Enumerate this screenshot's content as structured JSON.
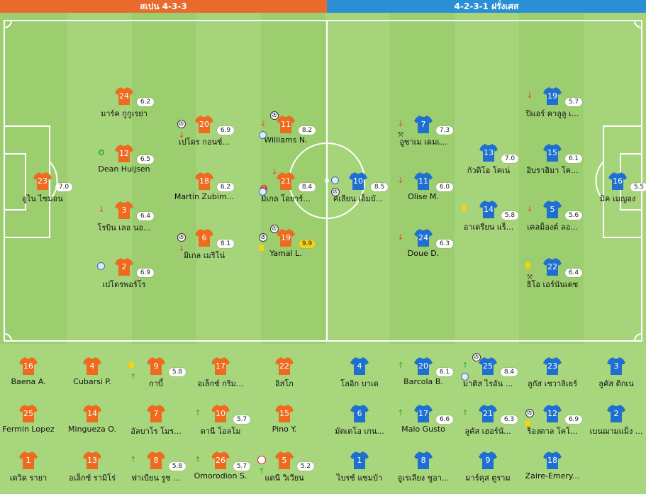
{
  "header": {
    "home_label": "สเปน 4-3-3",
    "away_label": "4-2-3-1 ฝรั่งเศส"
  },
  "colors": {
    "home_header": "#e86a2c",
    "away_header": "#2b8fd6",
    "home_jersey": "#ee6a1f",
    "away_jersey": "#1f6fd0",
    "pitch": "#9ccd6f",
    "rating_best": "#f2d21c"
  },
  "home_players": [
    {
      "number": "23",
      "name": "อูไน ไซมอน",
      "rating": "7.0",
      "events": []
    },
    {
      "number": "24",
      "name": "มาร์ค กูกูเรย่า",
      "rating": "6.2",
      "events": []
    },
    {
      "number": "12",
      "name": "Dean Huijsen",
      "rating": "6.5",
      "events": [
        "star-icon"
      ]
    },
    {
      "number": "3",
      "name": "โรบิน เลอ นอ...",
      "rating": "6.4",
      "events": [
        "sub-out-icon"
      ]
    },
    {
      "number": "2",
      "name": "เปโดรพอร์โร",
      "rating": "6.9",
      "events": [
        "assist-icon"
      ]
    },
    {
      "number": "20",
      "name": "เปโดร กอนซ์...",
      "rating": "6.9",
      "events": [
        "goal-icon",
        "sub-out-icon"
      ]
    },
    {
      "number": "18",
      "name": "Martín Zubim...",
      "rating": "6.2",
      "events": []
    },
    {
      "number": "6",
      "name": "มิเกล เมริโน่",
      "rating": "8.1",
      "events": [
        "goal-icon",
        "sub-out-icon"
      ]
    },
    {
      "number": "11",
      "name": "Williams N.",
      "rating": "8.2",
      "events": [
        "sub-out-icon",
        "assist-icon",
        "goal-icon"
      ]
    },
    {
      "number": "21",
      "name": "มิเกล โอยาร์...",
      "rating": "8.4",
      "events": [
        "assist-count-icon",
        "assist-icon",
        "sub-out-icon"
      ],
      "assist_count": "2"
    },
    {
      "number": "19",
      "name": "Yamal L.",
      "rating": "9.9",
      "best": true,
      "events": [
        "goal-icon",
        "yellow-card-icon",
        "goal-icon"
      ]
    }
  ],
  "away_players": [
    {
      "number": "10",
      "name": "คีเลียน เอ็มบั...",
      "rating": "8.5",
      "events": [
        "assist-icon",
        "goal-icon"
      ]
    },
    {
      "number": "7",
      "name": "อูซาเม เดมเ...",
      "rating": "7.3",
      "events": [
        "sub-out-icon",
        "whistle-icon"
      ]
    },
    {
      "number": "11",
      "name": "Olise M.",
      "rating": "6.0",
      "events": [
        "sub-out-icon"
      ]
    },
    {
      "number": "24",
      "name": "Doue D.",
      "rating": "6.3",
      "events": [
        "sub-out-icon"
      ]
    },
    {
      "number": "13",
      "name": "กัวดิโอ โคเน่",
      "rating": "7.0",
      "events": []
    },
    {
      "number": "14",
      "name": "อาเดรียน แร็...",
      "rating": "5.8",
      "events": [
        "yellow-card-icon"
      ]
    },
    {
      "number": "19",
      "name": "ปิแอร์ คาลูลู เ...",
      "rating": "5.7",
      "events": [
        "sub-out-icon"
      ]
    },
    {
      "number": "15",
      "name": "อิบราฮิมา โค...",
      "rating": "6.1",
      "events": []
    },
    {
      "number": "5",
      "name": "เคลม็องต์ ลอ...",
      "rating": "5.6",
      "events": [
        "sub-out-icon"
      ]
    },
    {
      "number": "22",
      "name": "ธิโอ เอร์นันเดซ",
      "rating": "6.4",
      "events": [
        "yellow-card-icon",
        "whistle-icon"
      ]
    },
    {
      "number": "16",
      "name": "มิค เมญอง",
      "rating": "5.5",
      "events": []
    }
  ],
  "home_bench": [
    {
      "number": "16",
      "name": "Baena A.",
      "rating": "",
      "events": []
    },
    {
      "number": "4",
      "name": "Cubarsi P.",
      "rating": "",
      "events": []
    },
    {
      "number": "9",
      "name": "กาบี้",
      "rating": "5.8",
      "events": [
        "yellow-card-icon",
        "sub-in-icon"
      ]
    },
    {
      "number": "17",
      "name": "อเล็กซ์ กริม...",
      "rating": "",
      "events": []
    },
    {
      "number": "22",
      "name": "อิสโก",
      "rating": "",
      "events": []
    },
    {
      "number": "25",
      "name": "Fermin Lopez",
      "rating": "",
      "events": []
    },
    {
      "number": "14",
      "name": "Mingueza O.",
      "rating": "",
      "events": []
    },
    {
      "number": "7",
      "name": "อัลบาโร โมร...",
      "rating": "",
      "events": []
    },
    {
      "number": "10",
      "name": "ดานี โอลโม",
      "rating": "5.7",
      "events": [
        "sub-in-icon"
      ]
    },
    {
      "number": "15",
      "name": "Pino Y.",
      "rating": "",
      "events": []
    },
    {
      "number": "1",
      "name": "เดวิด รายา",
      "rating": "",
      "events": []
    },
    {
      "number": "13",
      "name": "อเล็กซ์ รามิโร่",
      "rating": "",
      "events": []
    },
    {
      "number": "8",
      "name": "ฟาเบียน รูซ ...",
      "rating": "5.8",
      "events": [
        "sub-in-icon"
      ]
    },
    {
      "number": "26",
      "name": "Omorodion S.",
      "rating": "5.7",
      "events": [
        "sub-in-icon"
      ]
    },
    {
      "number": "5",
      "name": "แดนี วิเวียน",
      "rating": "5.2",
      "events": [
        "own-goal-icon",
        "sub-in-icon"
      ]
    }
  ],
  "away_bench": [
    {
      "number": "4",
      "name": "โลอิก บาเด",
      "rating": "",
      "events": []
    },
    {
      "number": "20",
      "name": "Barcola B.",
      "rating": "6.1",
      "events": [
        "sub-in-icon"
      ]
    },
    {
      "number": "25",
      "name": "มาติส ไรอัน ...",
      "rating": "8.4",
      "events": [
        "sub-in-icon",
        "assist-icon",
        "goal-icon"
      ]
    },
    {
      "number": "23",
      "name": "ลูกัส เชวาลิเยร์",
      "rating": "",
      "events": []
    },
    {
      "number": "3",
      "name": "ลูคัส ดิกเน",
      "rating": "",
      "events": []
    },
    {
      "number": "6",
      "name": "มัตเตโอ เกน...",
      "rating": "",
      "events": []
    },
    {
      "number": "17",
      "name": "Malo Gusto",
      "rating": "6.6",
      "events": [
        "sub-in-icon"
      ]
    },
    {
      "number": "21",
      "name": "ลูคัส เฮอร์นั...",
      "rating": "6.3",
      "events": [
        "sub-in-icon"
      ]
    },
    {
      "number": "12",
      "name": "ร็องดาล โคโ...",
      "rating": "6.9",
      "events": [
        "goal-icon",
        "yellow-card-icon"
      ]
    },
    {
      "number": "2",
      "name": "เบนฌามแม็ง ...",
      "rating": "",
      "events": []
    },
    {
      "number": "1",
      "name": "ไบรซ์ แซมบ้า",
      "rating": "",
      "events": []
    },
    {
      "number": "8",
      "name": "อูเรเลียง ชูอา...",
      "rating": "",
      "events": []
    },
    {
      "number": "9",
      "name": "มาร์คุส ตูราม",
      "rating": "",
      "events": []
    },
    {
      "number": "18",
      "name": "Zaire-Emery...",
      "rating": "",
      "events": []
    }
  ]
}
